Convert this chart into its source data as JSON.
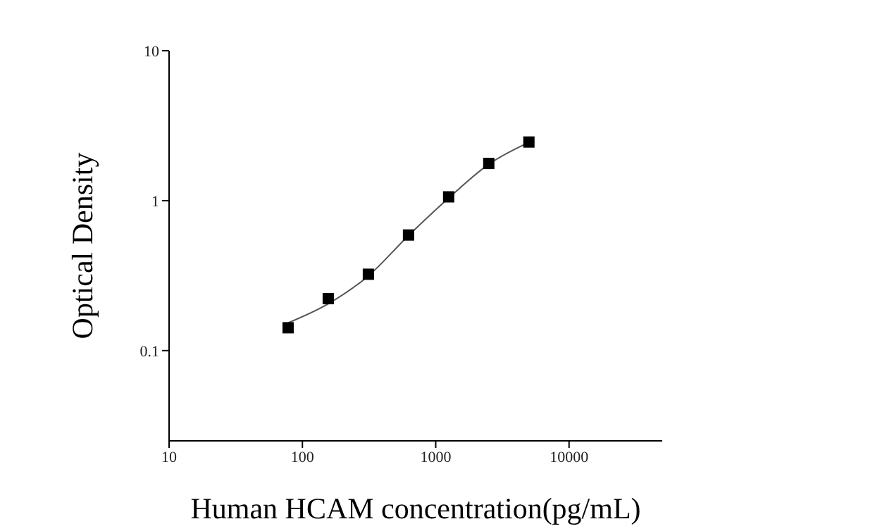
{
  "chart_data": {
    "type": "scatter",
    "xlabel": "Human HCAM concentration(pg/mL)",
    "ylabel": "Optical Density",
    "log": "xy",
    "grid": false,
    "legend": false,
    "x": [
      78.125,
      156.25,
      312.5,
      625,
      1250,
      2500,
      5000
    ],
    "series": [
      {
        "color": "#000000",
        "marker": "square",
        "values": [
          0.142,
          0.222,
          0.323,
          0.59,
          1.06,
          1.77,
          2.46
        ]
      },
      {
        "type": "line",
        "color": "#555555",
        "marker": "none",
        "line_style": "solid",
        "values": [
          0.153,
          0.205,
          0.315,
          0.585,
          1.04,
          1.75,
          2.45
        ]
      }
    ],
    "xlim": [
      10,
      50000
    ],
    "xticks": [
      10,
      100,
      1000,
      10000
    ],
    "ylim": [
      0.025,
      10
    ],
    "yticks": [
      0.1,
      1,
      10
    ]
  }
}
